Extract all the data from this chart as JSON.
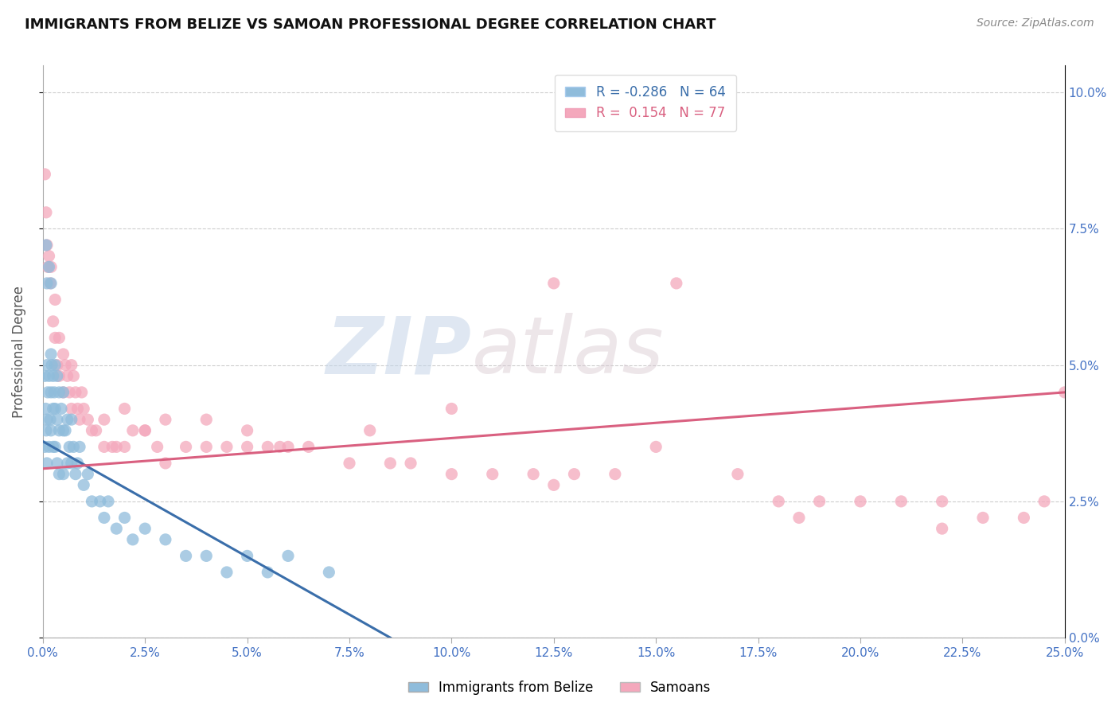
{
  "title": "IMMIGRANTS FROM BELIZE VS SAMOAN PROFESSIONAL DEGREE CORRELATION CHART",
  "source": "Source: ZipAtlas.com",
  "ylabel": "Professional Degree",
  "xlim": [
    0.0,
    25.0
  ],
  "ylim": [
    0.0,
    10.5
  ],
  "xticks": [
    0.0,
    2.5,
    5.0,
    7.5,
    10.0,
    12.5,
    15.0,
    17.5,
    20.0,
    22.5,
    25.0
  ],
  "yticks": [
    0.0,
    2.5,
    5.0,
    7.5,
    10.0
  ],
  "blue_R": -0.286,
  "blue_N": 64,
  "pink_R": 0.154,
  "pink_N": 77,
  "blue_color": "#8fbcdb",
  "pink_color": "#f4a8bc",
  "blue_line_color": "#3a6eaa",
  "pink_line_color": "#d96080",
  "background_color": "#ffffff",
  "title_fontsize": 13,
  "axis_label_color": "#4472c4",
  "blue_line_x0": 0.0,
  "blue_line_y0": 3.6,
  "blue_line_x1": 8.5,
  "blue_line_y1": 0.0,
  "pink_line_x0": 0.0,
  "pink_line_y0": 3.1,
  "pink_line_x1": 25.0,
  "pink_line_y1": 4.5,
  "blue_x": [
    0.05,
    0.05,
    0.07,
    0.08,
    0.1,
    0.1,
    0.1,
    0.12,
    0.15,
    0.15,
    0.18,
    0.2,
    0.2,
    0.2,
    0.22,
    0.25,
    0.25,
    0.25,
    0.28,
    0.3,
    0.3,
    0.3,
    0.35,
    0.35,
    0.35,
    0.4,
    0.4,
    0.4,
    0.45,
    0.5,
    0.5,
    0.5,
    0.55,
    0.6,
    0.6,
    0.65,
    0.7,
    0.7,
    0.75,
    0.8,
    0.85,
    0.9,
    1.0,
    1.1,
    1.2,
    1.4,
    1.5,
    1.6,
    1.8,
    2.0,
    2.2,
    2.5,
    3.0,
    3.5,
    4.0,
    4.5,
    5.0,
    5.5,
    6.0,
    7.0,
    0.08,
    0.1,
    0.15,
    0.2
  ],
  "blue_y": [
    4.8,
    3.5,
    4.2,
    3.8,
    5.0,
    4.0,
    3.2,
    4.5,
    4.8,
    3.5,
    4.0,
    5.2,
    4.5,
    3.8,
    5.0,
    4.8,
    4.2,
    3.5,
    4.5,
    5.0,
    4.2,
    3.5,
    4.8,
    4.0,
    3.2,
    4.5,
    3.8,
    3.0,
    4.2,
    4.5,
    3.8,
    3.0,
    3.8,
    4.0,
    3.2,
    3.5,
    4.0,
    3.2,
    3.5,
    3.0,
    3.2,
    3.5,
    2.8,
    3.0,
    2.5,
    2.5,
    2.2,
    2.5,
    2.0,
    2.2,
    1.8,
    2.0,
    1.8,
    1.5,
    1.5,
    1.2,
    1.5,
    1.2,
    1.5,
    1.2,
    7.2,
    6.5,
    6.8,
    6.5
  ],
  "pink_x": [
    0.05,
    0.08,
    0.1,
    0.12,
    0.15,
    0.18,
    0.2,
    0.25,
    0.3,
    0.3,
    0.35,
    0.4,
    0.4,
    0.5,
    0.5,
    0.55,
    0.6,
    0.65,
    0.7,
    0.7,
    0.75,
    0.8,
    0.85,
    0.9,
    0.95,
    1.0,
    1.1,
    1.2,
    1.3,
    1.5,
    1.5,
    1.7,
    1.8,
    2.0,
    2.2,
    2.5,
    2.8,
    3.0,
    3.5,
    4.0,
    4.5,
    5.0,
    5.5,
    5.8,
    6.5,
    7.5,
    8.5,
    9.0,
    10.0,
    11.0,
    12.0,
    12.5,
    13.0,
    14.0,
    15.0,
    17.0,
    18.0,
    19.0,
    20.0,
    21.0,
    22.0,
    23.0,
    24.0,
    24.5,
    2.0,
    2.5,
    3.0,
    4.0,
    5.0,
    6.0,
    8.0,
    10.0,
    12.5,
    15.5,
    18.5,
    22.0,
    25.0
  ],
  "pink_y": [
    8.5,
    7.8,
    7.2,
    6.8,
    7.0,
    6.5,
    6.8,
    5.8,
    6.2,
    5.5,
    5.0,
    5.5,
    4.8,
    5.2,
    4.5,
    5.0,
    4.8,
    4.5,
    5.0,
    4.2,
    4.8,
    4.5,
    4.2,
    4.0,
    4.5,
    4.2,
    4.0,
    3.8,
    3.8,
    3.5,
    4.0,
    3.5,
    3.5,
    3.5,
    3.8,
    3.8,
    3.5,
    3.2,
    3.5,
    3.5,
    3.5,
    3.5,
    3.5,
    3.5,
    3.5,
    3.2,
    3.2,
    3.2,
    3.0,
    3.0,
    3.0,
    2.8,
    3.0,
    3.0,
    3.5,
    3.0,
    2.5,
    2.5,
    2.5,
    2.5,
    2.5,
    2.2,
    2.2,
    2.5,
    4.2,
    3.8,
    4.0,
    4.0,
    3.8,
    3.5,
    3.8,
    4.2,
    6.5,
    6.5,
    2.2,
    2.0,
    4.5
  ]
}
